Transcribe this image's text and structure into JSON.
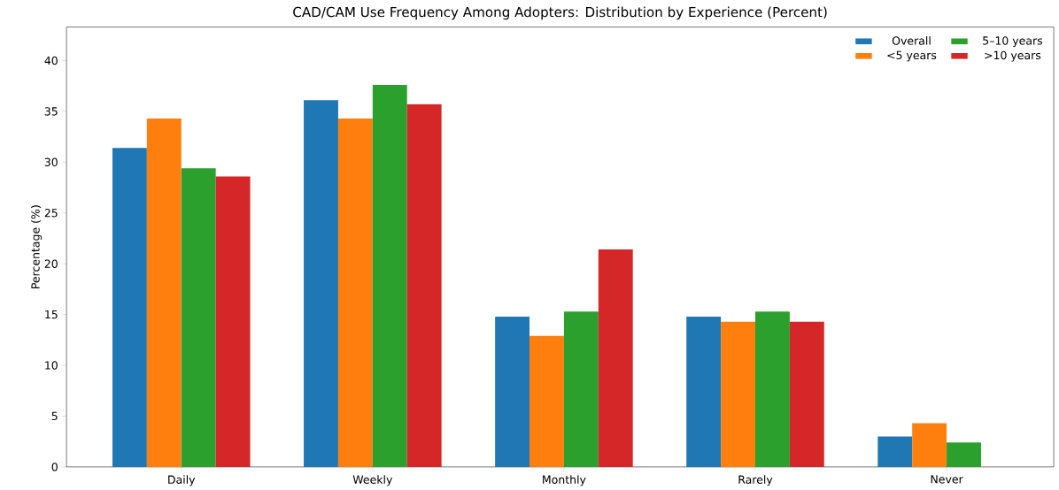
{
  "chart_data": {
    "type": "bar",
    "title": "CAD/CAM Use Frequency Among Adopters: Distribution by Experience (Percent)",
    "ylabel": "Percentage (%)",
    "categories": [
      "Daily",
      "Weekly",
      "Monthly",
      "Rarely",
      "Never"
    ],
    "series": [
      {
        "name": "Overall",
        "color": "#1f77b4",
        "values": [
          31.4,
          36.1,
          14.8,
          14.8,
          3.0
        ]
      },
      {
        "name": "<5 years",
        "color": "#ff7f0e",
        "values": [
          34.3,
          34.3,
          12.9,
          14.3,
          4.3
        ]
      },
      {
        "name": "5–10 years",
        "color": "#2ca02c",
        "values": [
          29.4,
          37.6,
          15.3,
          15.3,
          2.4
        ]
      },
      {
        "name": ">10 years",
        "color": "#d62728",
        "values": [
          28.6,
          35.7,
          21.4,
          14.3,
          0
        ]
      }
    ],
    "ylim": [
      0,
      43.3
    ],
    "yticks": [
      0,
      5,
      10,
      15,
      20,
      25,
      30,
      35,
      40
    ],
    "legend": "top right",
    "grid": false
  }
}
